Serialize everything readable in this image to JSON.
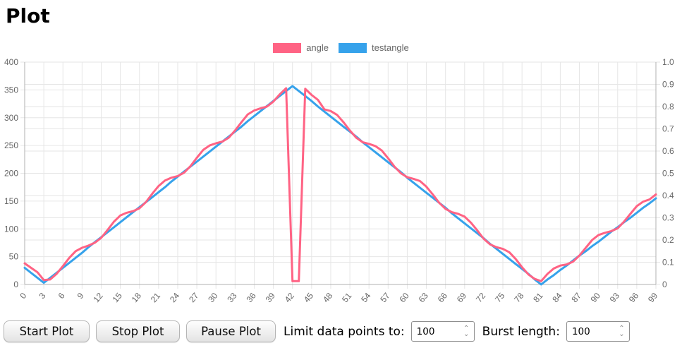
{
  "page": {
    "title": "Plot"
  },
  "legend": [
    {
      "label": "angle",
      "color": "#ff6384"
    },
    {
      "label": "testangle",
      "color": "#36a2eb"
    }
  ],
  "chart_data": {
    "type": "line",
    "title": "",
    "xlabel": "",
    "ylabel": "",
    "grid": true,
    "legend_position": "top",
    "x_tick_labels": [
      "0",
      "3",
      "6",
      "9",
      "12",
      "15",
      "18",
      "21",
      "24",
      "27",
      "30",
      "33",
      "36",
      "39",
      "42",
      "45",
      "48",
      "51",
      "54",
      "57",
      "60",
      "63",
      "66",
      "69",
      "72",
      "75",
      "78",
      "81",
      "84",
      "87",
      "90",
      "93",
      "96",
      "99"
    ],
    "x_range": [
      0,
      99
    ],
    "left_axis": {
      "min": 0,
      "max": 400,
      "step": 50,
      "tick_labels": [
        "400",
        "350",
        "300",
        "250",
        "200",
        "150",
        "100",
        "50",
        "0"
      ]
    },
    "right_axis": {
      "min": 0,
      "max": 1.0,
      "step": 0.1,
      "tick_labels": [
        "1.0",
        "0.9",
        "0.8",
        "0.7",
        "0.6",
        "0.5",
        "0.4",
        "0.3",
        "0.2",
        "0.1",
        "0"
      ]
    },
    "series": [
      {
        "name": "testangle",
        "color": "#36a2eb",
        "axis": "left",
        "values": [
          30,
          21,
          12,
          3,
          12,
          21,
          30,
          39,
          48,
          57,
          67,
          76,
          85,
          94,
          103,
          112,
          121,
          130,
          139,
          148,
          157,
          166,
          175,
          185,
          194,
          203,
          212,
          221,
          230,
          239,
          248,
          257,
          266,
          275,
          284,
          294,
          303,
          312,
          321,
          330,
          339,
          348,
          357,
          348,
          339,
          330,
          320,
          311,
          302,
          293,
          284,
          275,
          266,
          256,
          247,
          238,
          229,
          220,
          211,
          202,
          192,
          183,
          174,
          165,
          156,
          147,
          138,
          128,
          119,
          110,
          101,
          92,
          83,
          73,
          64,
          55,
          46,
          37,
          28,
          19,
          9,
          0,
          9,
          17,
          26,
          34,
          43,
          52,
          60,
          69,
          77,
          86,
          95,
          103,
          112,
          120,
          129,
          138,
          146,
          155
        ]
      },
      {
        "name": "angle",
        "color": "#ff6384",
        "axis": "left",
        "values": [
          38,
          30,
          22,
          8,
          9,
          19,
          33,
          48,
          60,
          66,
          70,
          75,
          84,
          98,
          113,
          124,
          129,
          132,
          137,
          148,
          163,
          177,
          187,
          192,
          195,
          201,
          213,
          228,
          242,
          250,
          254,
          257,
          264,
          277,
          292,
          306,
          313,
          317,
          320,
          329,
          342,
          353,
          6,
          6,
          352,
          341,
          332,
          315,
          312,
          305,
          292,
          277,
          264,
          256,
          253,
          249,
          241,
          227,
          212,
          200,
          193,
          190,
          186,
          176,
          162,
          147,
          136,
          130,
          127,
          122,
          111,
          97,
          82,
          72,
          67,
          64,
          58,
          46,
          31,
          18,
          10,
          6,
          19,
          29,
          34,
          36,
          41,
          52,
          66,
          80,
          89,
          93,
          96,
          101,
          113,
          127,
          141,
          149,
          153,
          162
        ]
      }
    ],
    "colors": {
      "grid": "#e6e6e6",
      "axis_border": "#b0b0b0",
      "tick_text": "#666666"
    }
  },
  "controls": {
    "start_label": "Start Plot",
    "stop_label": "Stop Plot",
    "pause_label": "Pause Plot",
    "limit_label": "Limit data points to:",
    "limit_value": "100",
    "burst_label": "Burst length:",
    "burst_value": "100"
  }
}
